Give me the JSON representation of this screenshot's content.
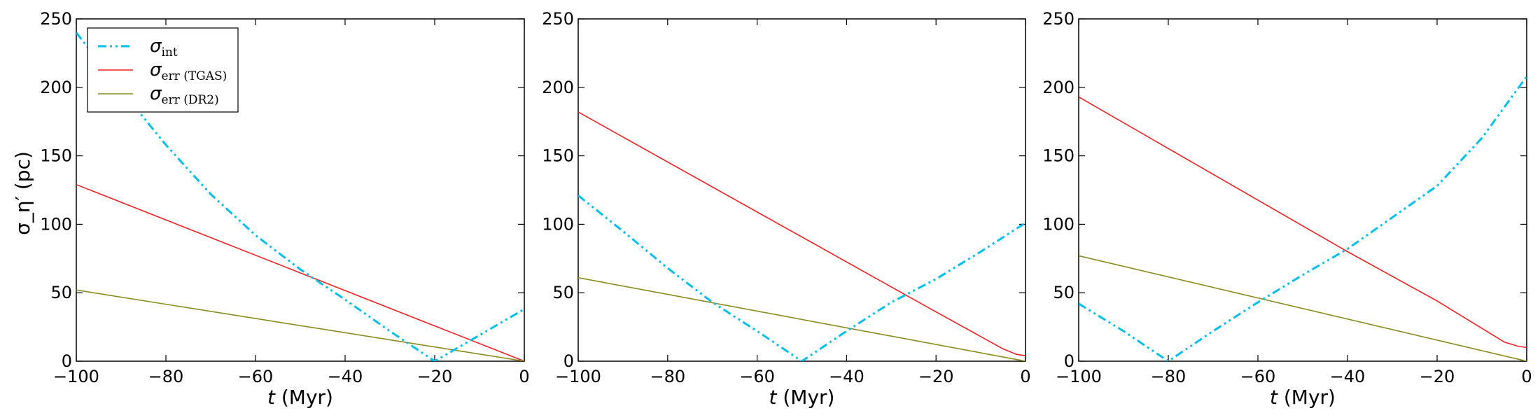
{
  "figure": {
    "ylabel": "σ_η′ (pc)",
    "xlabel_italic": "t",
    "xlabel_unit": " (Myr)"
  },
  "legend": {
    "items": [
      {
        "sym": "σ",
        "sub": "int",
        "series": "int"
      },
      {
        "sym": "σ",
        "sub": "err (TGAS)",
        "series": "tgas"
      },
      {
        "sym": "σ",
        "sub": "err (DR2)",
        "series": "dr2"
      }
    ]
  },
  "colors": {
    "int": "#00bfe8",
    "tgas": "#ee2222",
    "dr2": "#8a8a1e"
  },
  "chart_data": [
    {
      "type": "line",
      "xlabel": "t (Myr)",
      "ylabel": "σ_η′ (pc)",
      "xlim": [
        -100,
        0
      ],
      "ylim": [
        0,
        250
      ],
      "xticks": [
        -100,
        -80,
        -60,
        -40,
        -20,
        0
      ],
      "yticks": [
        0,
        50,
        100,
        150,
        200,
        250
      ],
      "legend": "top-left",
      "series": [
        {
          "name": "σ_int",
          "key": "int",
          "x": [
            -100,
            -90,
            -80,
            -70,
            -60,
            -50,
            -40,
            -30,
            -20,
            -10,
            0
          ],
          "y": [
            240,
            198,
            158,
            122,
            92,
            67,
            45,
            22,
            0,
            19,
            38
          ]
        },
        {
          "name": "σ_err (TGAS)",
          "key": "tgas",
          "x": [
            -100,
            0
          ],
          "y": [
            129,
            0
          ]
        },
        {
          "name": "σ_err (DR2)",
          "key": "dr2",
          "x": [
            -100,
            0
          ],
          "y": [
            52,
            0
          ]
        }
      ]
    },
    {
      "type": "line",
      "xlabel": "t (Myr)",
      "xlim": [
        -100,
        0
      ],
      "ylim": [
        0,
        250
      ],
      "xticks": [
        -100,
        -80,
        -60,
        -40,
        -20,
        0
      ],
      "yticks": [
        0,
        50,
        100,
        150,
        200,
        250
      ],
      "series": [
        {
          "key": "int",
          "x": [
            -100,
            -90,
            -80,
            -70,
            -60,
            -50,
            -40,
            -30,
            -20,
            -10,
            0
          ],
          "y": [
            121,
            95,
            68,
            43,
            22,
            0,
            22,
            43,
            60,
            80,
            101
          ]
        },
        {
          "key": "tgas",
          "x": [
            -100,
            -20,
            -10,
            -5,
            -2,
            0
          ],
          "y": [
            182,
            36,
            18,
            9,
            5,
            4
          ]
        },
        {
          "key": "dr2",
          "x": [
            -100,
            0
          ],
          "y": [
            61,
            0
          ]
        }
      ]
    },
    {
      "type": "line",
      "xlabel": "t (Myr)",
      "xlim": [
        -100,
        0
      ],
      "ylim": [
        0,
        250
      ],
      "xticks": [
        -100,
        -80,
        -60,
        -40,
        -20,
        0
      ],
      "yticks": [
        0,
        50,
        100,
        150,
        200,
        250
      ],
      "series": [
        {
          "key": "int",
          "x": [
            -100,
            -90,
            -80,
            -70,
            -60,
            -50,
            -40,
            -30,
            -20,
            -10,
            0
          ],
          "y": [
            42,
            22,
            0,
            22,
            43,
            63,
            82,
            105,
            128,
            163,
            208
          ]
        },
        {
          "key": "tgas",
          "x": [
            -100,
            -40,
            -20,
            -10,
            -5,
            -2,
            0
          ],
          "y": [
            193,
            80,
            44,
            24,
            14,
            11,
            10
          ]
        },
        {
          "key": "dr2",
          "x": [
            -100,
            0
          ],
          "y": [
            77,
            0
          ]
        }
      ]
    }
  ]
}
